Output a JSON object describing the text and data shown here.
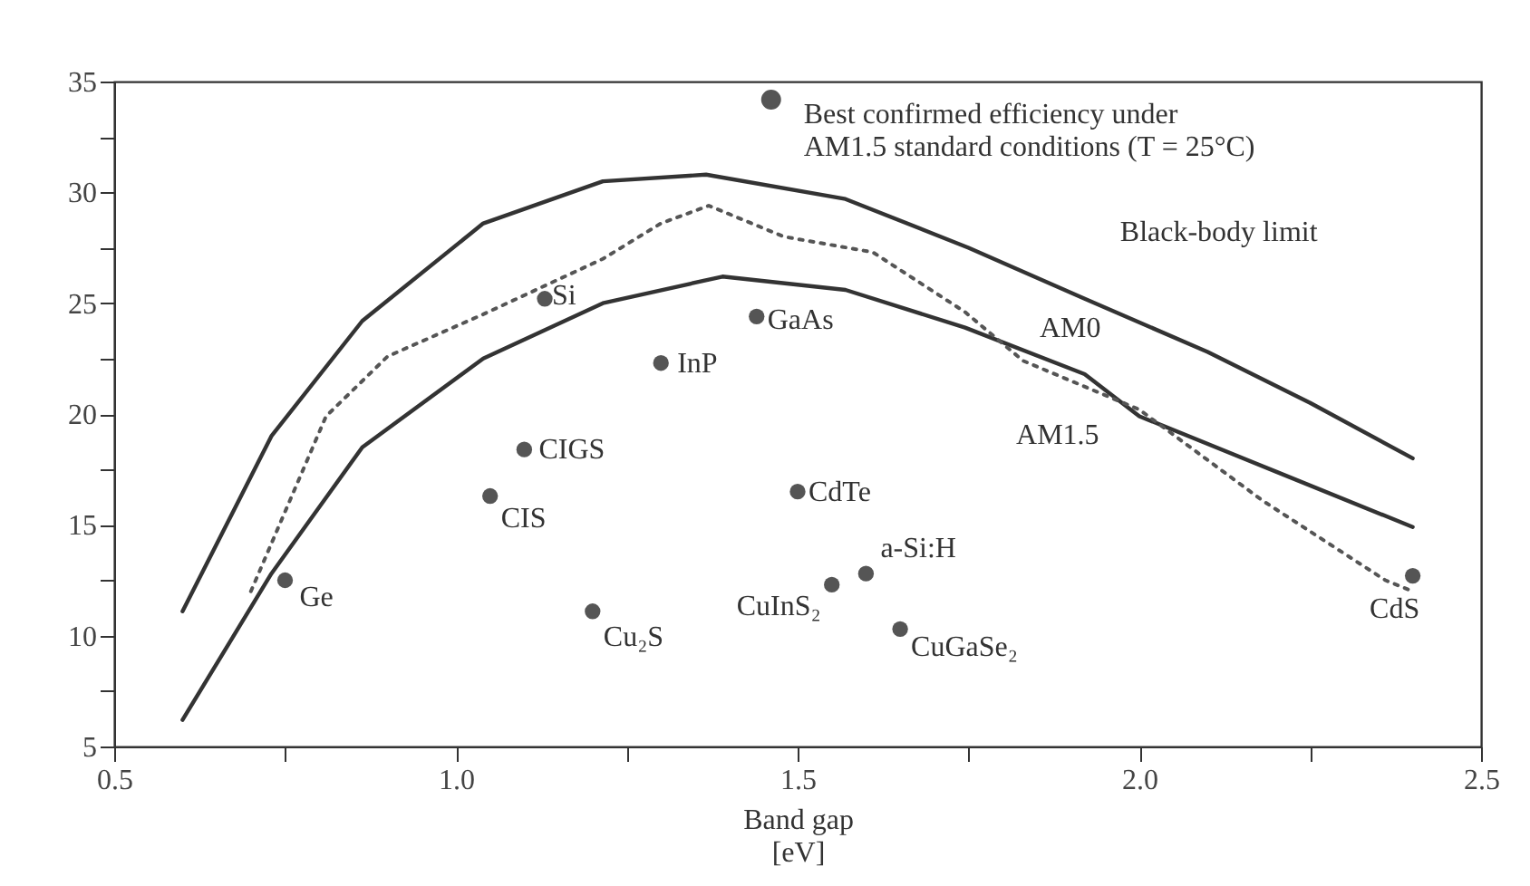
{
  "chart_data": {
    "type": "line",
    "xlabel": "Band gap\n[eV]",
    "xlim": [
      0.5,
      2.5
    ],
    "ylim": [
      5,
      35
    ],
    "xticks": [
      {
        "value": 0.5,
        "label": "0.5"
      },
      {
        "value": 0.75,
        "label": null
      },
      {
        "value": 1,
        "label": "1.0"
      },
      {
        "value": 1.25,
        "label": null
      },
      {
        "value": 1.5,
        "label": "1.5"
      },
      {
        "value": 1.75,
        "label": null
      },
      {
        "value": 2,
        "label": "2.0"
      },
      {
        "value": 2.25,
        "label": null
      },
      {
        "value": 2.5,
        "label": "2.5"
      }
    ],
    "yticks": [
      5,
      {
        "value": 7.5,
        "label": null
      },
      10,
      {
        "value": 12.5,
        "label": null
      },
      15,
      {
        "value": 17.5,
        "label": null
      },
      20,
      {
        "value": 22.5,
        "label": null
      },
      25,
      {
        "value": 27.5,
        "label": null
      },
      30,
      {
        "value": 32.5,
        "label": null
      },
      35
    ],
    "grid": false,
    "legend": "top",
    "series": [
      {
        "name": "Black-body limit",
        "type": "line",
        "color": "#333333",
        "line_style": "solid",
        "x": [
          0.6,
          0.73,
          0.863,
          1.04,
          1.215,
          1.366,
          1.57,
          1.75,
          1.92,
          2.1,
          2.25,
          2.4
        ],
        "values": [
          11.1,
          19.0,
          24.2,
          28.6,
          30.5,
          30.8,
          29.7,
          27.5,
          25.2,
          22.8,
          20.5,
          18.0
        ]
      },
      {
        "name": "AM0",
        "type": "line",
        "color": "#333333",
        "line_style": "solid",
        "x": [
          0.6,
          0.73,
          0.863,
          1.04,
          1.215,
          1.39,
          1.57,
          1.745,
          1.92,
          2.0,
          2.2,
          2.4
        ],
        "values": [
          6.2,
          12.8,
          18.5,
          22.5,
          25.0,
          26.2,
          25.6,
          23.9,
          21.8,
          19.9,
          17.4,
          14.9
        ]
      },
      {
        "name": "AM1.5",
        "type": "line",
        "color": "#555555",
        "line_style": "dotted",
        "x": [
          0.7,
          0.81,
          0.9,
          1.04,
          1.215,
          1.3,
          1.37,
          1.48,
          1.61,
          1.745,
          1.83,
          2.0,
          2.18,
          2.36,
          2.4
        ],
        "values": [
          12.0,
          19.9,
          22.6,
          24.5,
          27.0,
          28.6,
          29.4,
          28.0,
          27.3,
          24.6,
          22.4,
          20.2,
          16.1,
          12.5,
          12.0
        ]
      },
      {
        "name": "Best confirmed efficiency under AM1.5 standard conditions (T = 25°C)",
        "type": "scatter",
        "color": "#555555",
        "marker": "circle",
        "x": [
          0.75,
          1.13,
          1.3,
          1.44,
          1.1,
          1.05,
          1.2,
          1.5,
          1.55,
          1.6,
          1.65,
          2.4
        ],
        "values": [
          12.5,
          25.2,
          22.3,
          24.4,
          18.4,
          16.3,
          11.1,
          16.5,
          12.3,
          12.8,
          10.3,
          12.7
        ]
      }
    ],
    "annotations": [
      {
        "text": "Ge",
        "x": 0.75,
        "y": 12.5
      },
      {
        "text": "Si",
        "x": 1.13,
        "y": 25.2
      },
      {
        "text": "InP",
        "x": 1.3,
        "y": 22.3
      },
      {
        "text": "GaAs",
        "x": 1.44,
        "y": 24.4
      },
      {
        "text": "CIGS",
        "x": 1.1,
        "y": 18.4
      },
      {
        "text": "CIS",
        "x": 1.05,
        "y": 16.3
      },
      {
        "text": "Cu₂S",
        "x": 1.2,
        "y": 11.1
      },
      {
        "text": "CdTe",
        "x": 1.5,
        "y": 16.5
      },
      {
        "text": "CuInS₂",
        "x": 1.55,
        "y": 12.3
      },
      {
        "text": "a-Si:H",
        "x": 1.6,
        "y": 12.8
      },
      {
        "text": "CuGaSe₂",
        "x": 1.65,
        "y": 10.3
      },
      {
        "text": "CdS",
        "x": 2.4,
        "y": 12.7
      }
    ]
  }
}
